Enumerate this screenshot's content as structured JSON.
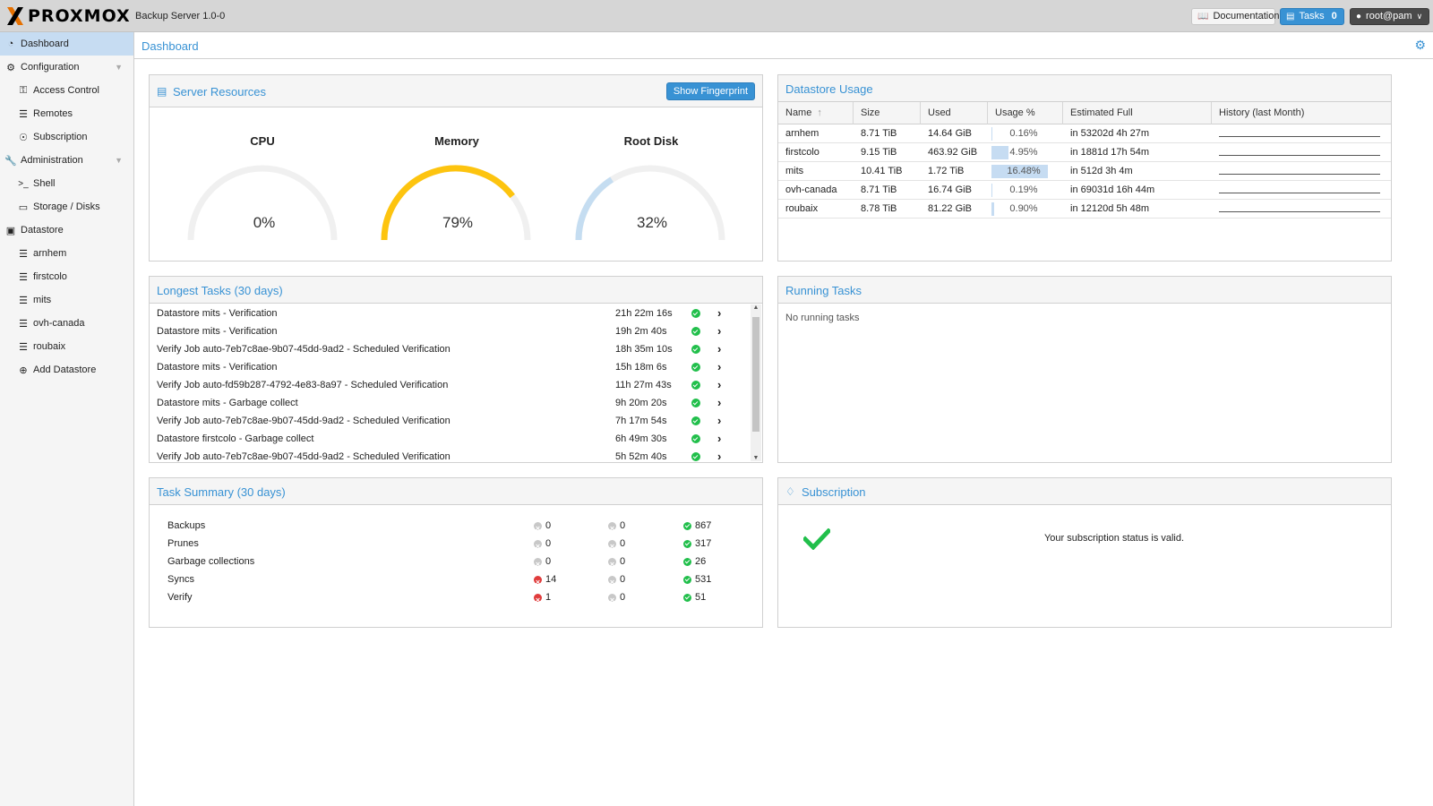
{
  "app": {
    "logo": "PROXMOX",
    "product": "Backup Server 1.0-0",
    "documentation_label": "Documentation",
    "tasks_label": "Tasks",
    "tasks_count": "0",
    "user_label": "root@pam"
  },
  "sidebar": {
    "items": [
      {
        "label": "Dashboard",
        "icon": "dashboard-icon"
      },
      {
        "label": "Configuration",
        "icon": "cogs-icon"
      },
      {
        "label": "Access Control",
        "icon": "key-icon"
      },
      {
        "label": "Remotes",
        "icon": "server-icon"
      },
      {
        "label": "Subscription",
        "icon": "support-icon"
      },
      {
        "label": "Administration",
        "icon": "wrench-icon"
      },
      {
        "label": "Shell",
        "icon": "terminal-icon"
      },
      {
        "label": "Storage / Disks",
        "icon": "hdd-icon"
      },
      {
        "label": "Datastore",
        "icon": "archive-icon"
      },
      {
        "label": "arnhem",
        "icon": "database-icon"
      },
      {
        "label": "firstcolo",
        "icon": "database-icon"
      },
      {
        "label": "mits",
        "icon": "database-icon"
      },
      {
        "label": "ovh-canada",
        "icon": "database-icon"
      },
      {
        "label": "roubaix",
        "icon": "database-icon"
      },
      {
        "label": "Add Datastore",
        "icon": "plus-circle-icon"
      }
    ]
  },
  "header": {
    "title": "Dashboard"
  },
  "server_resources": {
    "title": "Server Resources",
    "fingerprint_button": "Show Fingerprint",
    "gauges": [
      {
        "label": "CPU",
        "value_text": "0%",
        "fraction": 0.0,
        "color": "#c5ddf1"
      },
      {
        "label": "Memory",
        "value_text": "79%",
        "fraction": 0.79,
        "color": "#fdc40f"
      },
      {
        "label": "Root Disk",
        "value_text": "32%",
        "fraction": 0.32,
        "color": "#c5ddf1"
      }
    ]
  },
  "datastore_usage": {
    "title": "Datastore Usage",
    "columns": [
      "Name",
      "Size",
      "Used",
      "Usage %",
      "Estimated Full",
      "History (last Month)"
    ],
    "rows": [
      {
        "name": "arnhem",
        "size": "8.71 TiB",
        "used": "14.64 GiB",
        "usage": "0.16%",
        "usage_fraction": 0.0016,
        "estimated_full": "in 53202d 4h 27m"
      },
      {
        "name": "firstcolo",
        "size": "9.15 TiB",
        "used": "463.92 GiB",
        "usage": "4.95%",
        "usage_fraction": 0.0495,
        "estimated_full": "in 1881d 17h 54m"
      },
      {
        "name": "mits",
        "size": "10.41 TiB",
        "used": "1.72 TiB",
        "usage": "16.48%",
        "usage_fraction": 0.1648,
        "estimated_full": "in 512d 3h 4m"
      },
      {
        "name": "ovh-canada",
        "size": "8.71 TiB",
        "used": "16.74 GiB",
        "usage": "0.19%",
        "usage_fraction": 0.0019,
        "estimated_full": "in 69031d 16h 44m"
      },
      {
        "name": "roubaix",
        "size": "8.78 TiB",
        "used": "81.22 GiB",
        "usage": "0.90%",
        "usage_fraction": 0.009,
        "estimated_full": "in 12120d 5h 48m"
      }
    ]
  },
  "longest_tasks": {
    "title": "Longest Tasks (30 days)",
    "rows": [
      {
        "name": "Datastore mits - Verification",
        "duration": "21h 22m 16s"
      },
      {
        "name": "Datastore mits - Verification",
        "duration": "19h 2m 40s"
      },
      {
        "name": "Verify Job auto-7eb7c8ae-9b07-45dd-9ad2 - Scheduled Verification",
        "duration": "18h 35m 10s"
      },
      {
        "name": "Datastore mits - Verification",
        "duration": "15h 18m 6s"
      },
      {
        "name": "Verify Job auto-fd59b287-4792-4e83-8a97 - Scheduled Verification",
        "duration": "11h 27m 43s"
      },
      {
        "name": "Datastore mits - Garbage collect",
        "duration": "9h 20m 20s"
      },
      {
        "name": "Verify Job auto-7eb7c8ae-9b07-45dd-9ad2 - Scheduled Verification",
        "duration": "7h 17m 54s"
      },
      {
        "name": "Datastore firstcolo - Garbage collect",
        "duration": "6h 49m 30s"
      },
      {
        "name": "Verify Job auto-7eb7c8ae-9b07-45dd-9ad2 - Scheduled Verification",
        "duration": "5h 52m 40s"
      }
    ]
  },
  "running_tasks": {
    "title": "Running Tasks",
    "empty_text": "No running tasks"
  },
  "task_summary": {
    "title": "Task Summary (30 days)",
    "rows": [
      {
        "label": "Backups",
        "error": "0",
        "error_status": "grey",
        "warning": "0",
        "ok": "867"
      },
      {
        "label": "Prunes",
        "error": "0",
        "error_status": "grey",
        "warning": "0",
        "ok": "317"
      },
      {
        "label": "Garbage collections",
        "error": "0",
        "error_status": "grey",
        "warning": "0",
        "ok": "26"
      },
      {
        "label": "Syncs",
        "error": "14",
        "error_status": "red",
        "warning": "0",
        "ok": "531"
      },
      {
        "label": "Verify",
        "error": "1",
        "error_status": "red",
        "warning": "0",
        "ok": "51"
      }
    ]
  },
  "subscription": {
    "title": "Subscription",
    "status_text": "Your subscription status is valid."
  }
}
